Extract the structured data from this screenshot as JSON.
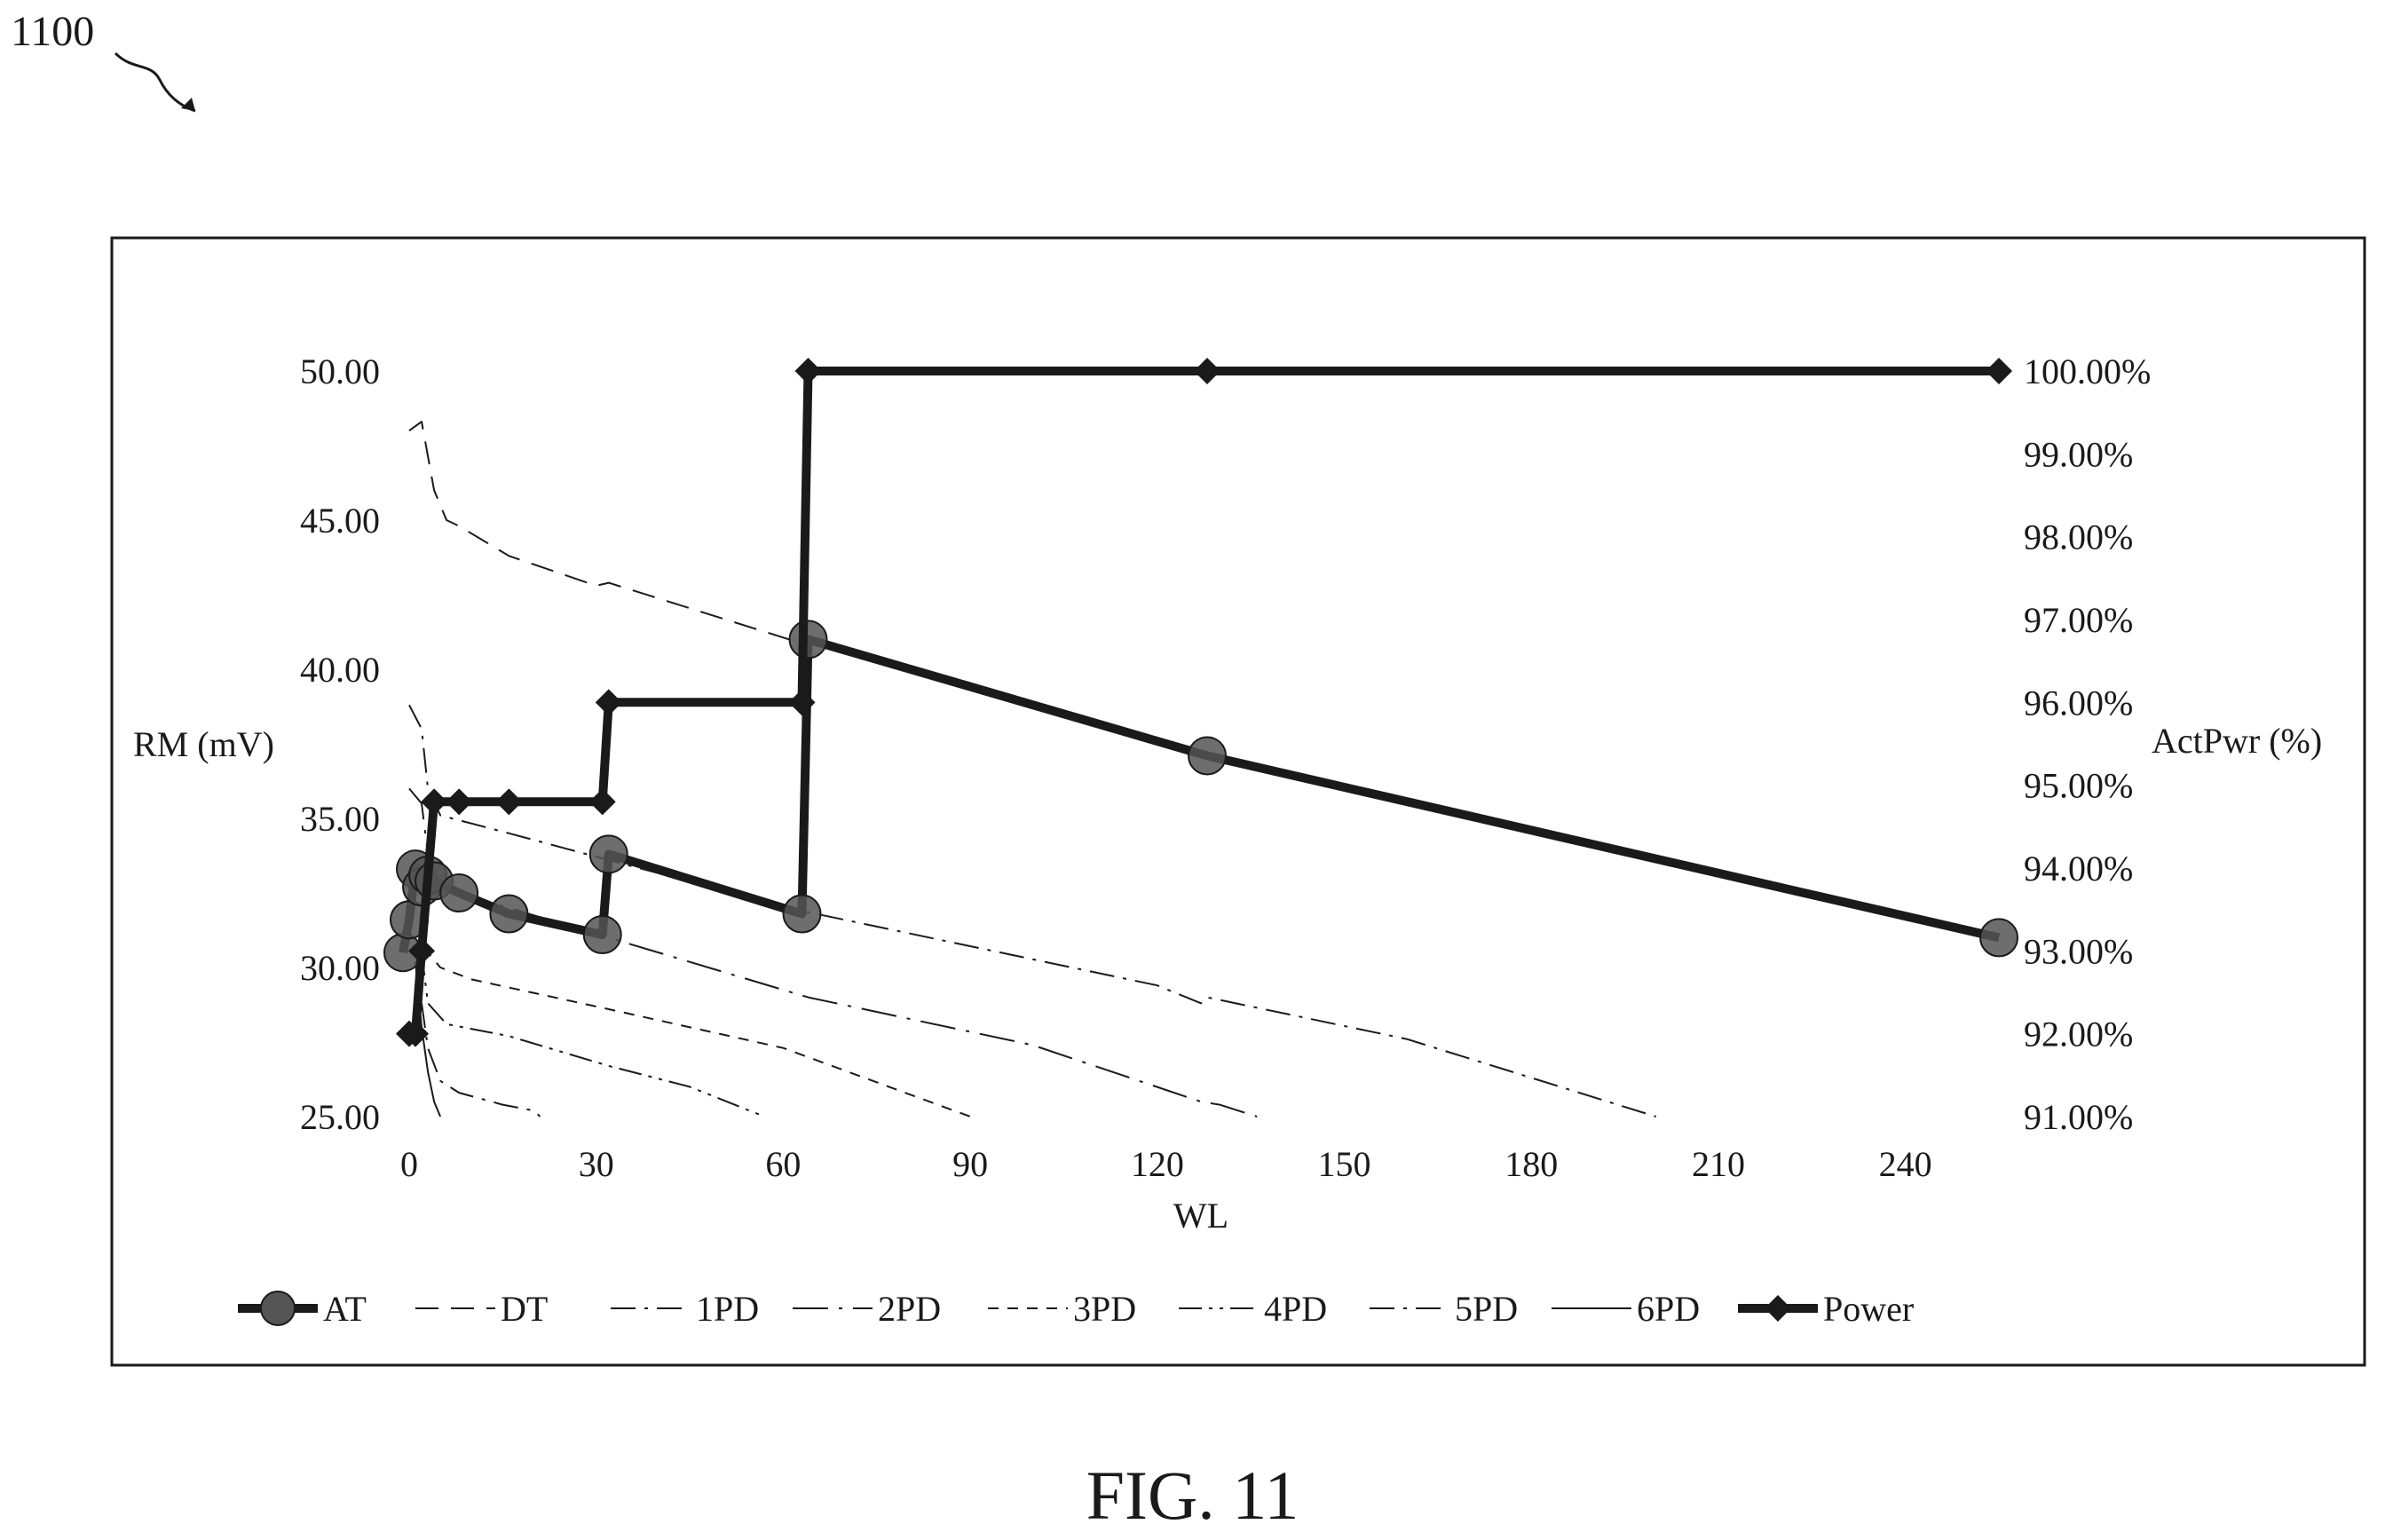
{
  "figure": {
    "ref_number": "1100",
    "caption": "FIG. 11"
  },
  "chart_data": {
    "type": "line",
    "x": {
      "label": "WL",
      "range": [
        0,
        254
      ],
      "ticks": [
        0,
        30,
        60,
        90,
        120,
        150,
        180,
        210,
        240
      ]
    },
    "y_left": {
      "label": "RM (mV)",
      "range": [
        25,
        50
      ],
      "ticks": [
        "25.00",
        "30.00",
        "35.00",
        "40.00",
        "45.00",
        "50.00"
      ]
    },
    "y_right": {
      "label": "ActPwr (%)",
      "range": [
        91,
        100
      ],
      "ticks": [
        "91.00%",
        "92.00%",
        "93.00%",
        "94.00%",
        "95.00%",
        "96.00%",
        "97.00%",
        "98.00%",
        "99.00%",
        "100.00%"
      ]
    },
    "legend_position": "bottom",
    "grid": false,
    "series": [
      {
        "name": "AT",
        "axis": "left",
        "style": "thick-circle",
        "points": [
          [
            -1,
            30.5
          ],
          [
            0,
            31.6
          ],
          [
            1,
            33.3
          ],
          [
            2,
            32.7
          ],
          [
            3,
            33.1
          ],
          [
            4,
            32.9
          ],
          [
            8,
            32.5
          ],
          [
            16,
            31.8
          ],
          [
            31,
            31.1
          ],
          [
            32,
            33.8
          ],
          [
            63,
            31.8
          ],
          [
            64,
            41.0
          ],
          [
            128,
            37.1
          ],
          [
            255,
            31.0
          ]
        ]
      },
      {
        "name": "DT",
        "axis": "left",
        "style": "dash",
        "points": [
          [
            0,
            48.0
          ],
          [
            2,
            48.3
          ],
          [
            4,
            46.0
          ],
          [
            6,
            45.0
          ],
          [
            8,
            44.8
          ],
          [
            16,
            43.8
          ],
          [
            30,
            42.8
          ],
          [
            32,
            42.9
          ],
          [
            64,
            40.8
          ]
        ]
      },
      {
        "name": "1PD",
        "axis": "left",
        "style": "dash-dot",
        "points": [
          [
            0,
            38.8
          ],
          [
            2,
            38.0
          ],
          [
            3,
            36.0
          ],
          [
            5,
            35.1
          ],
          [
            16,
            34.5
          ],
          [
            32,
            33.6
          ],
          [
            63,
            31.9
          ],
          [
            120,
            29.4
          ],
          [
            127,
            28.8
          ],
          [
            128,
            29.0
          ],
          [
            160,
            27.6
          ],
          [
            200,
            25.0
          ]
        ]
      },
      {
        "name": "2PD",
        "axis": "left",
        "style": "long-dash-dot",
        "points": [
          [
            0,
            36.0
          ],
          [
            2,
            35.5
          ],
          [
            3,
            33.8
          ],
          [
            4,
            33.0
          ],
          [
            8,
            32.5
          ],
          [
            16,
            32.0
          ],
          [
            32,
            31.0
          ],
          [
            64,
            29.0
          ],
          [
            100,
            27.4
          ],
          [
            127,
            25.5
          ],
          [
            130,
            25.4
          ],
          [
            136,
            25.0
          ]
        ]
      },
      {
        "name": "3PD",
        "axis": "left",
        "style": "short-dash",
        "points": [
          [
            2,
            32.0
          ],
          [
            3,
            30.5
          ],
          [
            5,
            30.0
          ],
          [
            10,
            29.6
          ],
          [
            32,
            28.6
          ],
          [
            60,
            27.3
          ],
          [
            90,
            25.0
          ]
        ]
      },
      {
        "name": "4PD",
        "axis": "left",
        "style": "dash-dot-dot",
        "points": [
          [
            2,
            30.5
          ],
          [
            3,
            28.8
          ],
          [
            6,
            28.1
          ],
          [
            16,
            27.7
          ],
          [
            32,
            26.7
          ],
          [
            45,
            26.0
          ],
          [
            57,
            25.0
          ]
        ]
      },
      {
        "name": "5PD",
        "axis": "left",
        "style": "dash-dot",
        "points": [
          [
            2,
            28.8
          ],
          [
            3,
            27.3
          ],
          [
            5,
            26.2
          ],
          [
            8,
            25.8
          ],
          [
            15,
            25.4
          ],
          [
            20,
            25.2
          ],
          [
            21,
            25.0
          ]
        ]
      },
      {
        "name": "6PD",
        "axis": "left",
        "style": "solid-thin",
        "points": [
          [
            1,
            30.2
          ],
          [
            2,
            28.0
          ],
          [
            3,
            26.5
          ],
          [
            4,
            25.5
          ],
          [
            5,
            25.0
          ]
        ]
      },
      {
        "name": "Power",
        "axis": "right",
        "style": "thick-diamond",
        "points": [
          [
            0,
            92.0
          ],
          [
            1,
            92.0
          ],
          [
            2,
            93.0
          ],
          [
            4,
            94.8
          ],
          [
            8,
            94.8
          ],
          [
            16,
            94.8
          ],
          [
            31,
            94.8
          ],
          [
            32,
            96.0
          ],
          [
            63,
            96.0
          ],
          [
            64,
            100.0
          ],
          [
            128,
            100.0
          ],
          [
            255,
            100.0
          ]
        ]
      }
    ]
  }
}
